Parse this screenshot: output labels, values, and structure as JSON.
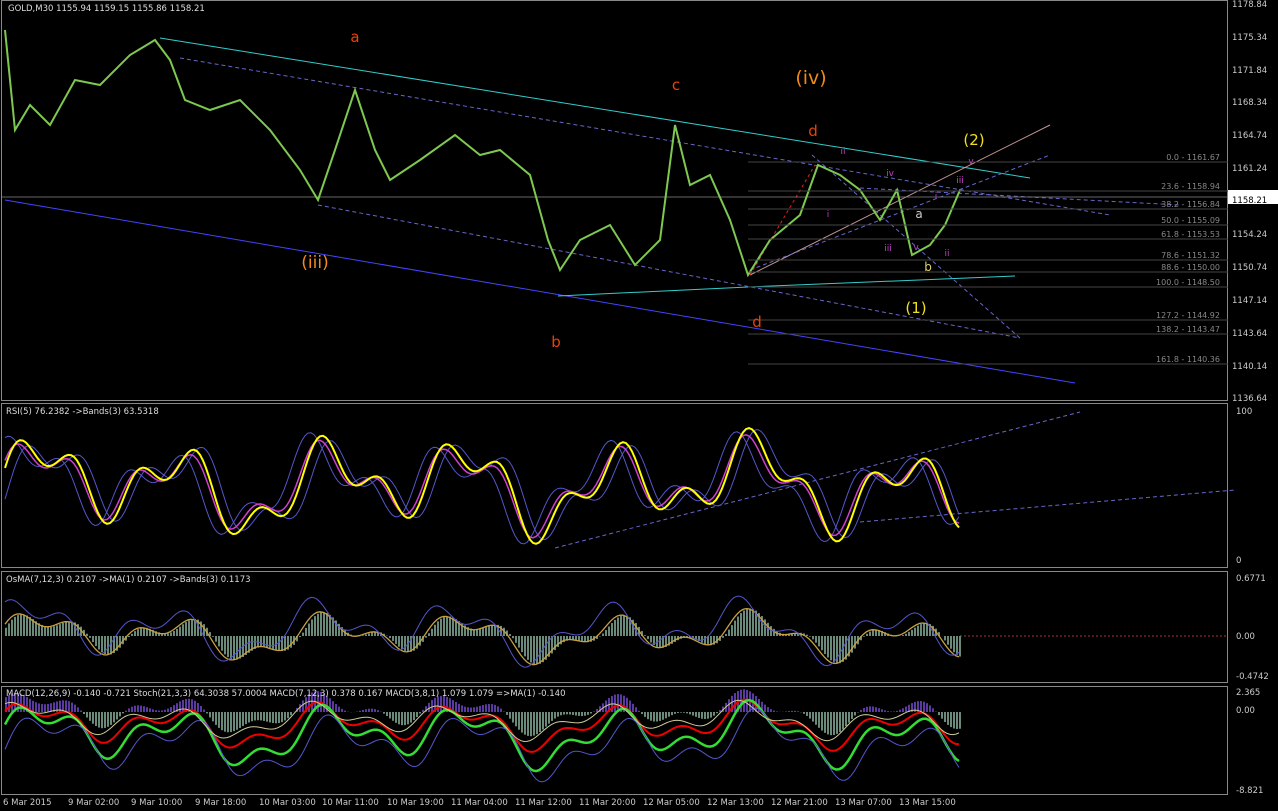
{
  "header": "GOLD,M30  1155.94 1159.15 1155.86 1158.21",
  "price_axis": [
    "1178.84",
    "1175.34",
    "1171.84",
    "1168.34",
    "1164.74",
    "1161.24",
    "1158.21",
    "1154.24",
    "1150.74",
    "1147.14",
    "1143.64",
    "1140.14",
    "1136.64"
  ],
  "fib_levels": [
    "0.0 - 1161.67",
    "23.6 - 1158.94",
    "38.2 - 1156.84",
    "50.0 - 1155.09",
    "61.8 - 1153.53",
    "78.6 - 1151.32",
    "88.6 - 1150.00",
    "100.0 - 1148.50",
    "127.2 - 1144.92",
    "138.2 - 1143.47",
    "161.8 - 1140.36"
  ],
  "annotations": [
    "a",
    "(iii)",
    "b",
    "c",
    "(iv)",
    "d",
    "d",
    "(2)",
    "(1)",
    "a",
    "b",
    "i",
    "ii",
    "iii",
    "iv",
    "v",
    "i",
    "ii",
    "iii",
    "v"
  ],
  "rsi": {
    "header": "RSI(5) 76.2382  ->Bands(3) 63.5318",
    "axis": [
      "100",
      "0"
    ]
  },
  "osma": {
    "header": "OsMA(7,12,3) 0.2107  ->MA(1) 0.2107  ->Bands(3) 0.1173",
    "axis": [
      "0.6771",
      "0.00",
      "-0.4742"
    ]
  },
  "macd": {
    "header": "MACD(12,26,9) -0.140 -0.721  Stoch(21,3,3) 64.3038 57.0004  MACD(7,12,3) 0.378 0.167  MACD(3,8,1) 1.079 1.079  =>MA(1) -0.140",
    "axis": [
      "2.365",
      "0.00",
      "-8.821"
    ]
  },
  "time_axis": [
    "6 Mar 2015",
    "9 Mar 02:00",
    "9 Mar 10:00",
    "9 Mar 18:00",
    "10 Mar 03:00",
    "10 Mar 11:00",
    "10 Mar 19:00",
    "11 Mar 04:00",
    "11 Mar 12:00",
    "11 Mar 20:00",
    "12 Mar 05:00",
    "12 Mar 13:00",
    "12 Mar 21:00",
    "13 Mar 07:00",
    "13 Mar 15:00"
  ]
}
